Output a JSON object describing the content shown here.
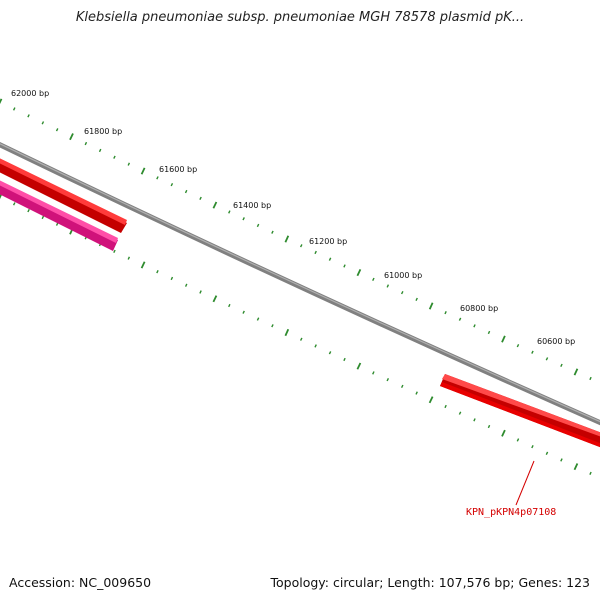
{
  "title": "Klebsiella pneumoniae subsp. pneumoniae MGH 78578 plasmid pK...",
  "footer": {
    "accession": "Accession: NC_009650",
    "summary": "Topology: circular; Length: 107,576 bp; Genes: 123"
  },
  "scale_labels": [
    "62000 bp",
    "61800 bp",
    "61600 bp",
    "61400 bp",
    "61200 bp",
    "61000 bp",
    "60800 bp",
    "60600 bp"
  ],
  "genes": [
    {
      "label": "",
      "color": "#ff0000",
      "strand": "outer"
    },
    {
      "label": "",
      "color": "#ff1493",
      "strand": "inner"
    },
    {
      "label": "KPN_pKPN4p07108",
      "color": "#ff0000",
      "strand": "outer"
    }
  ],
  "colors": {
    "backbone": "#808080",
    "tick": "#2e8b2e",
    "gene_label": "#d40000"
  }
}
